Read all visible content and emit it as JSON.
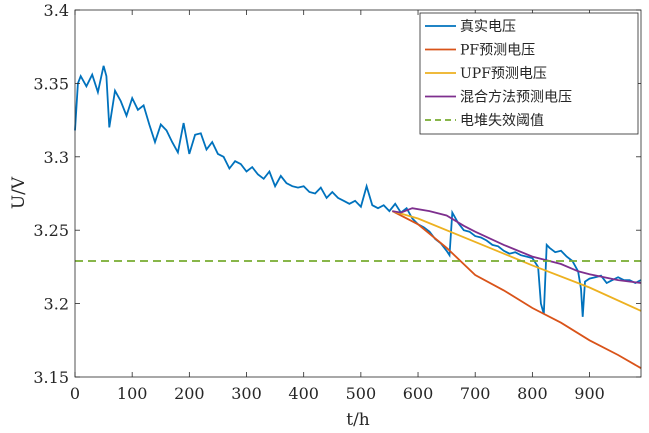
{
  "chart_data": {
    "type": "line",
    "title": "",
    "xlabel": "t/h",
    "ylabel": "U/V",
    "xlim": [
      0,
      990
    ],
    "ylim": [
      3.15,
      3.4
    ],
    "xticks": [
      0,
      100,
      200,
      300,
      400,
      500,
      600,
      700,
      800,
      900
    ],
    "yticks": [
      3.15,
      3.2,
      3.25,
      3.3,
      3.35,
      3.4
    ],
    "ytick_labels": [
      "3.15",
      "3.2",
      "3.25",
      "3.3",
      "3.35",
      "3.4"
    ],
    "grid": false,
    "legend_position": "top-right",
    "series": [
      {
        "name": "真实电压",
        "color": "#0072BD",
        "style": "solid",
        "x": [
          0,
          5,
          10,
          20,
          30,
          40,
          50,
          55,
          60,
          70,
          80,
          90,
          100,
          110,
          120,
          130,
          140,
          150,
          160,
          170,
          180,
          190,
          200,
          210,
          220,
          230,
          240,
          250,
          260,
          270,
          280,
          290,
          300,
          310,
          320,
          330,
          340,
          350,
          360,
          370,
          380,
          390,
          400,
          410,
          420,
          430,
          440,
          450,
          460,
          470,
          480,
          490,
          500,
          510,
          520,
          530,
          540,
          550,
          560,
          570,
          580,
          590,
          600,
          610,
          620,
          630,
          640,
          650,
          655,
          660,
          670,
          680,
          690,
          700,
          710,
          720,
          730,
          740,
          750,
          760,
          770,
          780,
          790,
          800,
          810,
          815,
          820,
          825,
          830,
          840,
          850,
          860,
          870,
          880,
          885,
          888,
          892,
          900,
          910,
          920,
          930,
          940,
          950,
          960,
          970,
          980,
          990
        ],
        "y": [
          3.318,
          3.35,
          3.355,
          3.348,
          3.356,
          3.344,
          3.362,
          3.355,
          3.32,
          3.345,
          3.338,
          3.328,
          3.34,
          3.332,
          3.335,
          3.322,
          3.31,
          3.322,
          3.318,
          3.31,
          3.303,
          3.323,
          3.302,
          3.315,
          3.316,
          3.305,
          3.31,
          3.302,
          3.3,
          3.292,
          3.297,
          3.295,
          3.29,
          3.293,
          3.288,
          3.285,
          3.29,
          3.28,
          3.287,
          3.282,
          3.28,
          3.279,
          3.28,
          3.276,
          3.275,
          3.279,
          3.272,
          3.276,
          3.272,
          3.27,
          3.268,
          3.27,
          3.266,
          3.28,
          3.267,
          3.265,
          3.267,
          3.263,
          3.268,
          3.262,
          3.265,
          3.258,
          3.254,
          3.252,
          3.249,
          3.244,
          3.241,
          3.236,
          3.233,
          3.262,
          3.255,
          3.25,
          3.249,
          3.246,
          3.245,
          3.243,
          3.24,
          3.239,
          3.236,
          3.234,
          3.235,
          3.233,
          3.232,
          3.231,
          3.225,
          3.2,
          3.193,
          3.24,
          3.238,
          3.235,
          3.236,
          3.232,
          3.229,
          3.222,
          3.21,
          3.191,
          3.215,
          3.217,
          3.218,
          3.219,
          3.214,
          3.216,
          3.218,
          3.216,
          3.216,
          3.214,
          3.216
        ]
      },
      {
        "name": "PF预测电压",
        "color": "#D95319",
        "style": "solid",
        "x": [
          555,
          600,
          650,
          700,
          750,
          800,
          850,
          900,
          950,
          990
        ],
        "y": [
          3.263,
          3.254,
          3.238,
          3.2195,
          3.209,
          3.197,
          3.187,
          3.175,
          3.165,
          3.156
        ]
      },
      {
        "name": "UPF预测电压",
        "color": "#EDB120",
        "style": "solid",
        "x": [
          555,
          600,
          700,
          800,
          900,
          990
        ],
        "y": [
          3.263,
          3.258,
          3.242,
          3.226,
          3.211,
          3.195
        ]
      },
      {
        "name": "混合方法预测电压",
        "color": "#7E2F8E",
        "style": "solid",
        "x": [
          555,
          570,
          590,
          620,
          650,
          680,
          700,
          750,
          800,
          850,
          880,
          900,
          950,
          990
        ],
        "y": [
          3.263,
          3.262,
          3.265,
          3.263,
          3.26,
          3.253,
          3.249,
          3.24,
          3.232,
          3.227,
          3.222,
          3.22,
          3.216,
          3.214
        ]
      },
      {
        "name": "电堆失效阈值",
        "color": "#77AC30",
        "style": "dashed",
        "x": [
          0,
          990
        ],
        "y": [
          3.229,
          3.229
        ]
      }
    ]
  }
}
